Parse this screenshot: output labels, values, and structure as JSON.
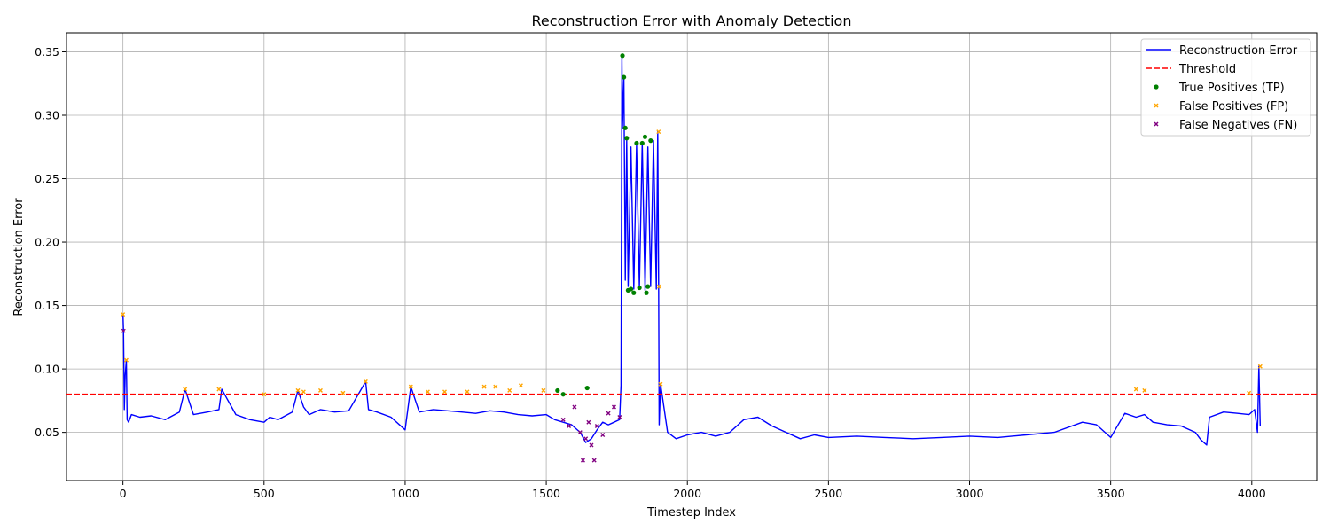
{
  "chart_data": {
    "type": "line",
    "title": "Reconstruction Error with Anomaly Detection",
    "xlabel": "Timestep Index",
    "ylabel": "Reconstruction Error",
    "xlim": [
      -200,
      4230
    ],
    "ylim": [
      0.012,
      0.365
    ],
    "x_ticks": [
      0,
      500,
      1000,
      1500,
      2000,
      2500,
      3000,
      3500,
      4000
    ],
    "y_ticks": [
      0.05,
      0.1,
      0.15,
      0.2,
      0.25,
      0.3,
      0.35
    ],
    "y_tick_labels": [
      "0.05",
      "0.10",
      "0.15",
      "0.20",
      "0.25",
      "0.30",
      "0.35"
    ],
    "grid": true,
    "legend_position": "top-right",
    "threshold": 0.08,
    "colors": {
      "error_line": "#0000ff",
      "threshold": "#ff0000",
      "tp": "#008000",
      "fp": "#ffa500",
      "fn": "#800080"
    },
    "series": [
      {
        "name": "Reconstruction Error",
        "type": "line",
        "x": [
          0,
          2,
          5,
          8,
          12,
          15,
          20,
          30,
          60,
          100,
          150,
          200,
          220,
          250,
          300,
          340,
          350,
          400,
          450,
          500,
          520,
          550,
          600,
          620,
          640,
          660,
          700,
          750,
          800,
          860,
          870,
          900,
          950,
          1000,
          1020,
          1050,
          1100,
          1150,
          1200,
          1250,
          1300,
          1350,
          1400,
          1450,
          1500,
          1530,
          1560,
          1590,
          1620,
          1640,
          1660,
          1680,
          1700,
          1720,
          1740,
          1760,
          1765,
          1768,
          1770,
          1775,
          1780,
          1785,
          1790,
          1800,
          1810,
          1820,
          1830,
          1840,
          1850,
          1860,
          1870,
          1880,
          1890,
          1895,
          1898,
          1900,
          1905,
          1930,
          1960,
          2000,
          2050,
          2100,
          2150,
          2200,
          2250,
          2300,
          2350,
          2400,
          2450,
          2500,
          2600,
          2700,
          2800,
          2900,
          3000,
          3100,
          3200,
          3300,
          3400,
          3450,
          3500,
          3550,
          3590,
          3620,
          3650,
          3700,
          3750,
          3800,
          3820,
          3840,
          3850,
          3900,
          3950,
          3990,
          4010,
          4020,
          4025,
          4030
        ],
        "values": [
          0.143,
          0.13,
          0.068,
          0.095,
          0.107,
          0.06,
          0.058,
          0.064,
          0.062,
          0.063,
          0.06,
          0.066,
          0.084,
          0.064,
          0.066,
          0.068,
          0.084,
          0.064,
          0.06,
          0.058,
          0.062,
          0.06,
          0.066,
          0.083,
          0.07,
          0.064,
          0.068,
          0.066,
          0.067,
          0.09,
          0.068,
          0.066,
          0.062,
          0.052,
          0.086,
          0.066,
          0.068,
          0.067,
          0.066,
          0.065,
          0.067,
          0.066,
          0.064,
          0.063,
          0.064,
          0.06,
          0.058,
          0.056,
          0.05,
          0.042,
          0.045,
          0.052,
          0.058,
          0.056,
          0.058,
          0.06,
          0.087,
          0.347,
          0.29,
          0.33,
          0.17,
          0.28,
          0.165,
          0.275,
          0.163,
          0.277,
          0.164,
          0.278,
          0.162,
          0.275,
          0.165,
          0.28,
          0.163,
          0.287,
          0.165,
          0.056,
          0.088,
          0.05,
          0.045,
          0.048,
          0.05,
          0.047,
          0.05,
          0.06,
          0.062,
          0.055,
          0.05,
          0.045,
          0.048,
          0.046,
          0.047,
          0.046,
          0.045,
          0.046,
          0.047,
          0.046,
          0.048,
          0.05,
          0.058,
          0.056,
          0.046,
          0.065,
          0.062,
          0.064,
          0.058,
          0.056,
          0.055,
          0.05,
          0.044,
          0.04,
          0.062,
          0.066,
          0.065,
          0.064,
          0.068,
          0.05,
          0.102,
          0.055
        ]
      },
      {
        "name": "Threshold",
        "type": "hline",
        "value": 0.08
      },
      {
        "name": "True Positives (TP)",
        "type": "scatter",
        "points": [
          [
            1770,
            0.347
          ],
          [
            1775,
            0.33
          ],
          [
            1780,
            0.29
          ],
          [
            1785,
            0.282
          ],
          [
            1790,
            0.162
          ],
          [
            1800,
            0.163
          ],
          [
            1810,
            0.16
          ],
          [
            1820,
            0.278
          ],
          [
            1830,
            0.164
          ],
          [
            1840,
            0.278
          ],
          [
            1850,
            0.283
          ],
          [
            1855,
            0.16
          ],
          [
            1860,
            0.165
          ],
          [
            1870,
            0.28
          ],
          [
            1540,
            0.083
          ],
          [
            1560,
            0.08
          ],
          [
            1645,
            0.085
          ]
        ]
      },
      {
        "name": "False Positives (FP)",
        "type": "scatter",
        "points": [
          [
            0,
            0.143
          ],
          [
            12,
            0.107
          ],
          [
            220,
            0.084
          ],
          [
            340,
            0.084
          ],
          [
            500,
            0.08
          ],
          [
            620,
            0.083
          ],
          [
            640,
            0.082
          ],
          [
            700,
            0.083
          ],
          [
            780,
            0.081
          ],
          [
            860,
            0.09
          ],
          [
            1020,
            0.086
          ],
          [
            1080,
            0.082
          ],
          [
            1140,
            0.082
          ],
          [
            1220,
            0.082
          ],
          [
            1280,
            0.086
          ],
          [
            1320,
            0.086
          ],
          [
            1370,
            0.083
          ],
          [
            1410,
            0.087
          ],
          [
            1490,
            0.083
          ],
          [
            1898,
            0.287
          ],
          [
            1900,
            0.165
          ],
          [
            1905,
            0.088
          ],
          [
            3590,
            0.084
          ],
          [
            3620,
            0.083
          ],
          [
            3990,
            0.081
          ],
          [
            4030,
            0.102
          ]
        ]
      },
      {
        "name": "False Negatives (FN)",
        "type": "scatter",
        "points": [
          [
            2,
            0.13
          ],
          [
            1560,
            0.06
          ],
          [
            1580,
            0.055
          ],
          [
            1600,
            0.07
          ],
          [
            1620,
            0.05
          ],
          [
            1630,
            0.028
          ],
          [
            1640,
            0.045
          ],
          [
            1650,
            0.058
          ],
          [
            1660,
            0.04
          ],
          [
            1670,
            0.028
          ],
          [
            1680,
            0.055
          ],
          [
            1700,
            0.048
          ],
          [
            1720,
            0.065
          ],
          [
            1740,
            0.07
          ],
          [
            1760,
            0.062
          ]
        ]
      }
    ]
  }
}
